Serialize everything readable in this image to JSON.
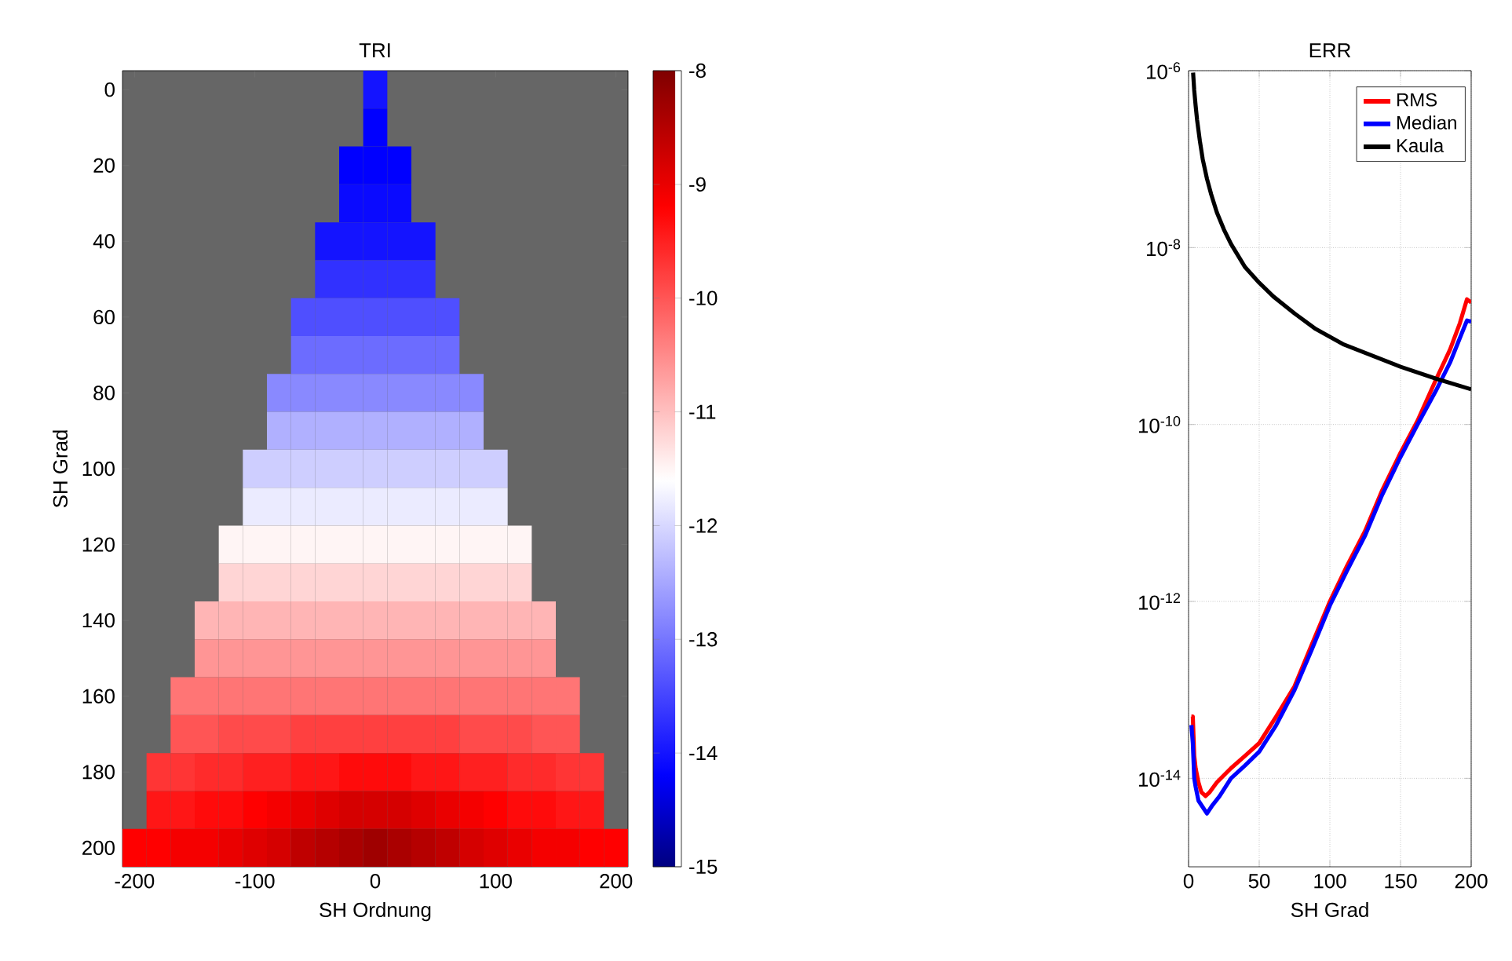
{
  "chart_data": [
    {
      "type": "heatmap",
      "title": "TRI",
      "xlabel": "SH Ordnung",
      "ylabel": "SH Grad",
      "categories": [
        "-200",
        null,
        null,
        null,
        null,
        "-100",
        null,
        null,
        null,
        null,
        "0",
        null,
        null,
        null,
        null,
        "100",
        null,
        null,
        null,
        null,
        "200"
      ],
      "y_categories": [
        "0",
        null,
        "20",
        null,
        "40",
        null,
        "60",
        null,
        "80",
        null,
        "100",
        null,
        "120",
        null,
        "140",
        null,
        "160",
        null,
        "180",
        null,
        "200"
      ],
      "cells": [
        [
          null,
          null,
          null,
          null,
          null,
          null,
          null,
          null,
          null,
          null,
          -14.0,
          null,
          null,
          null,
          null,
          null,
          null,
          null,
          null,
          null,
          null
        ],
        [
          null,
          null,
          null,
          null,
          null,
          null,
          null,
          null,
          null,
          null,
          -14.2,
          null,
          null,
          null,
          null,
          null,
          null,
          null,
          null,
          null,
          null
        ],
        [
          null,
          null,
          null,
          null,
          null,
          null,
          null,
          null,
          null,
          -14.2,
          -14.2,
          -14.2,
          null,
          null,
          null,
          null,
          null,
          null,
          null,
          null,
          null
        ],
        [
          null,
          null,
          null,
          null,
          null,
          null,
          null,
          null,
          null,
          -14.1,
          -14.1,
          -14.1,
          null,
          null,
          null,
          null,
          null,
          null,
          null,
          null,
          null
        ],
        [
          null,
          null,
          null,
          null,
          null,
          null,
          null,
          null,
          -14.0,
          -14.0,
          -14.0,
          -14.0,
          -14.0,
          null,
          null,
          null,
          null,
          null,
          null,
          null,
          null
        ],
        [
          null,
          null,
          null,
          null,
          null,
          null,
          null,
          null,
          -13.7,
          -13.7,
          -13.7,
          -13.7,
          -13.7,
          null,
          null,
          null,
          null,
          null,
          null,
          null,
          null
        ],
        [
          null,
          null,
          null,
          null,
          null,
          null,
          null,
          -13.4,
          -13.4,
          -13.4,
          -13.4,
          -13.4,
          -13.4,
          -13.4,
          null,
          null,
          null,
          null,
          null,
          null,
          null
        ],
        [
          null,
          null,
          null,
          null,
          null,
          null,
          null,
          -13.1,
          -13.1,
          -13.1,
          -13.1,
          -13.1,
          -13.1,
          -13.1,
          null,
          null,
          null,
          null,
          null,
          null,
          null
        ],
        [
          null,
          null,
          null,
          null,
          null,
          null,
          -12.8,
          -12.8,
          -12.8,
          -12.8,
          -12.8,
          -12.8,
          -12.8,
          -12.8,
          -12.8,
          null,
          null,
          null,
          null,
          null,
          null
        ],
        [
          null,
          null,
          null,
          null,
          null,
          null,
          -12.4,
          -12.4,
          -12.4,
          -12.4,
          -12.4,
          -12.4,
          -12.4,
          -12.4,
          -12.4,
          null,
          null,
          null,
          null,
          null,
          null
        ],
        [
          null,
          null,
          null,
          null,
          null,
          -12.1,
          -12.1,
          -12.1,
          -12.1,
          -12.1,
          -12.1,
          -12.1,
          -12.1,
          -12.1,
          -12.1,
          -12.1,
          null,
          null,
          null,
          null,
          null
        ],
        [
          null,
          null,
          null,
          null,
          null,
          -11.8,
          -11.8,
          -11.8,
          -11.8,
          -11.8,
          -11.8,
          -11.8,
          -11.8,
          -11.8,
          -11.8,
          -11.8,
          null,
          null,
          null,
          null,
          null
        ],
        [
          null,
          null,
          null,
          null,
          -11.5,
          -11.5,
          -11.5,
          -11.5,
          -11.5,
          -11.5,
          -11.5,
          -11.5,
          -11.5,
          -11.5,
          -11.5,
          -11.5,
          -11.5,
          null,
          null,
          null,
          null
        ],
        [
          null,
          null,
          null,
          null,
          -11.2,
          -11.2,
          -11.2,
          -11.2,
          -11.2,
          -11.2,
          -11.2,
          -11.2,
          -11.2,
          -11.2,
          -11.2,
          -11.2,
          -11.2,
          null,
          null,
          null,
          null
        ],
        [
          null,
          null,
          null,
          -10.9,
          -10.9,
          -10.9,
          -10.9,
          -10.9,
          -10.9,
          -10.9,
          -10.9,
          -10.9,
          -10.9,
          -10.9,
          -10.9,
          -10.9,
          -10.9,
          -10.9,
          null,
          null,
          null
        ],
        [
          null,
          null,
          null,
          -10.6,
          -10.6,
          -10.6,
          -10.6,
          -10.6,
          -10.6,
          -10.6,
          -10.6,
          -10.6,
          -10.6,
          -10.6,
          -10.6,
          -10.6,
          -10.6,
          -10.6,
          null,
          null,
          null
        ],
        [
          null,
          null,
          -10.3,
          -10.3,
          -10.3,
          -10.3,
          -10.3,
          -10.3,
          -10.3,
          -10.3,
          -10.3,
          -10.3,
          -10.3,
          -10.3,
          -10.3,
          -10.3,
          -10.3,
          -10.3,
          -10.3,
          null,
          null
        ],
        [
          null,
          null,
          -10.0,
          -10.0,
          -9.9,
          -9.9,
          -9.9,
          -9.8,
          -9.8,
          -9.8,
          -9.8,
          -9.8,
          -9.8,
          -9.8,
          -9.9,
          -9.9,
          -9.9,
          -10.0,
          -10.0,
          null,
          null
        ],
        [
          null,
          -9.7,
          -9.7,
          -9.6,
          -9.6,
          -9.5,
          -9.5,
          -9.4,
          -9.4,
          -9.3,
          -9.3,
          -9.3,
          -9.4,
          -9.4,
          -9.5,
          -9.5,
          -9.6,
          -9.6,
          -9.7,
          -9.7,
          null
        ],
        [
          null,
          -9.4,
          -9.4,
          -9.3,
          -9.3,
          -9.2,
          -9.1,
          -9.0,
          -8.9,
          -8.8,
          -8.8,
          -8.8,
          -8.9,
          -9.0,
          -9.1,
          -9.2,
          -9.3,
          -9.3,
          -9.4,
          -9.4,
          null
        ],
        [
          -9.2,
          -9.2,
          -9.1,
          -9.1,
          -9.0,
          -8.9,
          -8.8,
          -8.6,
          -8.5,
          -8.4,
          -8.3,
          -8.4,
          -8.5,
          -8.6,
          -8.8,
          -8.9,
          -9.0,
          -9.1,
          -9.1,
          -9.2,
          -9.2
        ]
      ],
      "clim": [
        -15,
        -8
      ],
      "cticks": [
        -8,
        -9,
        -10,
        -11,
        -12,
        -13,
        -14,
        -15
      ]
    },
    {
      "type": "line",
      "title": "ERR",
      "xlabel": "SH Grad",
      "xlim": [
        0,
        200
      ],
      "xticks": [
        0,
        50,
        100,
        150,
        200
      ],
      "ylim": [
        1e-15,
        1e-06
      ],
      "log": "y",
      "yticks": [
        {
          "value": 1e-06,
          "label": "10$^{-6}$"
        },
        {
          "value": 1e-08,
          "label": "10$^{-8}$"
        },
        {
          "value": 1e-10,
          "label": "10$^{-10}$"
        },
        {
          "value": 1e-12,
          "label": "10$^{-12}$"
        },
        {
          "value": 1e-14,
          "label": "10$^{-14}$"
        }
      ],
      "grid": true,
      "legend": "top right",
      "series": [
        {
          "name": "RMS",
          "color": "#ff0000",
          "x": [
            2,
            3,
            4,
            5,
            7,
            9,
            12,
            15,
            20,
            30,
            40,
            50,
            62,
            75,
            87,
            100,
            112,
            125,
            137,
            150,
            162,
            175,
            185,
            192,
            197,
            200
          ],
          "values": [
            5e-14,
            5e-14,
            1.8e-14,
            1.3e-14,
            9e-15,
            7e-15,
            6.3e-15,
            7e-15,
            9e-15,
            1.3e-14,
            1.8e-14,
            2.5e-14,
            5e-14,
            1.1e-13,
            3.2e-13,
            1e-12,
            2.5e-12,
            6.3e-12,
            1.8e-11,
            4.8e-11,
            1.1e-10,
            3.2e-10,
            7e-10,
            1.4e-09,
            2.6e-09,
            2.4e-09
          ]
        },
        {
          "name": "Median",
          "color": "#0000ff",
          "x": [
            2,
            3,
            4,
            5,
            7,
            9,
            13,
            17,
            22,
            30,
            40,
            50,
            62,
            75,
            87,
            100,
            112,
            125,
            137,
            150,
            162,
            175,
            185,
            192,
            197,
            200
          ],
          "values": [
            4e-14,
            2.5e-14,
            1e-14,
            8e-15,
            5.6e-15,
            5e-15,
            4e-15,
            5e-15,
            6.3e-15,
            1e-14,
            1.4e-14,
            2e-14,
            4e-14,
            1e-13,
            2.8e-13,
            9e-13,
            2.2e-12,
            5.6e-12,
            1.6e-11,
            4.3e-11,
            1e-10,
            2.4e-10,
            5e-10,
            9.5e-10,
            1.5e-09,
            1.45e-09
          ]
        },
        {
          "name": "Kaula",
          "color": "#000000",
          "x": [
            3.2,
            4,
            5,
            6,
            8,
            10,
            13,
            16,
            20,
            25,
            30,
            40,
            50,
            60,
            75,
            90,
            110,
            130,
            150,
            175,
            200
          ],
          "values": [
            9.5e-07,
            6e-07,
            4e-07,
            2.8e-07,
            1.6e-07,
            1e-07,
            6e-08,
            4e-08,
            2.5e-08,
            1.6e-08,
            1.1e-08,
            6e-09,
            4e-09,
            2.8e-09,
            1.8e-09,
            1.2e-09,
            8e-10,
            6e-10,
            4.5e-10,
            3.3e-10,
            2.5e-10
          ]
        }
      ]
    }
  ]
}
